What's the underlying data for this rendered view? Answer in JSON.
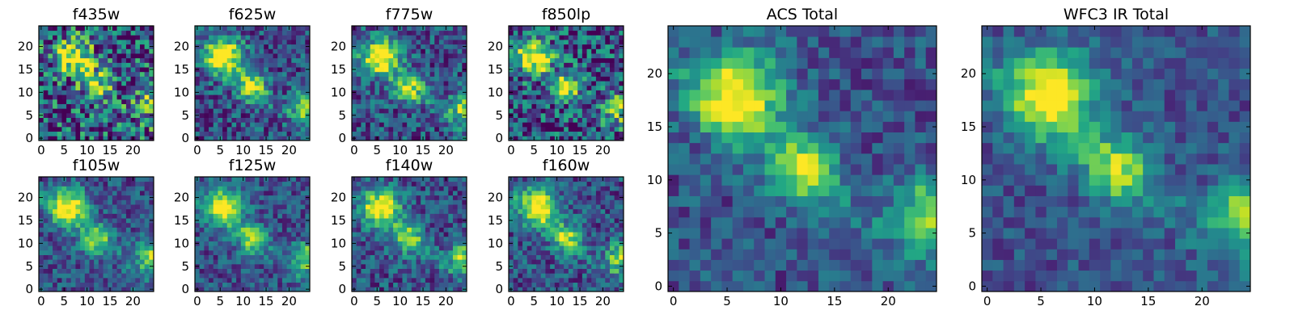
{
  "chart_data": [
    {
      "type": "heatmap",
      "title": "f435w",
      "xticks": [
        0,
        5,
        10,
        15,
        20
      ],
      "yticks": [
        0,
        5,
        10,
        15,
        20
      ],
      "xlim": [
        -0.5,
        24.5
      ],
      "ylim": [
        -0.5,
        24.5
      ],
      "grid": false,
      "colormap": "viridis",
      "shape": [
        25,
        25
      ],
      "peaks": [
        [
          18,
          7
        ],
        [
          12,
          12
        ],
        [
          8,
          24
        ]
      ],
      "noise": 0.9
    },
    {
      "type": "heatmap",
      "title": "f625w",
      "xticks": [
        0,
        5,
        10,
        15,
        20
      ],
      "yticks": [
        0,
        5,
        10,
        15,
        20
      ],
      "xlim": [
        -0.5,
        24.5
      ],
      "ylim": [
        -0.5,
        24.5
      ],
      "grid": false,
      "colormap": "viridis",
      "shape": [
        25,
        25
      ],
      "peaks": [
        [
          18,
          6
        ],
        [
          11,
          12
        ],
        [
          7,
          24
        ]
      ],
      "noise": 0.5
    },
    {
      "type": "heatmap",
      "title": "f775w",
      "xticks": [
        0,
        5,
        10,
        15,
        20
      ],
      "yticks": [
        0,
        5,
        10,
        15,
        20
      ],
      "xlim": [
        -0.5,
        24.5
      ],
      "ylim": [
        -0.5,
        24.5
      ],
      "grid": false,
      "colormap": "viridis",
      "shape": [
        25,
        25
      ],
      "peaks": [
        [
          18,
          6
        ],
        [
          11,
          12
        ],
        [
          7,
          24
        ]
      ],
      "noise": 0.5
    },
    {
      "type": "heatmap",
      "title": "f850lp",
      "xticks": [
        0,
        5,
        10,
        15,
        20
      ],
      "yticks": [
        0,
        5,
        10,
        15,
        20
      ],
      "xlim": [
        -0.5,
        24.5
      ],
      "ylim": [
        -0.5,
        24.5
      ],
      "grid": false,
      "colormap": "viridis",
      "shape": [
        25,
        25
      ],
      "peaks": [
        [
          18,
          5
        ],
        [
          11,
          12
        ],
        [
          7,
          24
        ]
      ],
      "noise": 0.75
    },
    {
      "type": "heatmap",
      "title": "f105w",
      "xticks": [
        0,
        5,
        10,
        15,
        20
      ],
      "yticks": [
        0,
        5,
        10,
        15,
        20
      ],
      "xlim": [
        -0.5,
        24.5
      ],
      "ylim": [
        -0.5,
        24.5
      ],
      "grid": false,
      "colormap": "viridis",
      "shape": [
        25,
        25
      ],
      "peaks": [
        [
          18,
          6
        ],
        [
          11,
          12
        ],
        [
          7,
          24
        ]
      ],
      "noise": 0.4
    },
    {
      "type": "heatmap",
      "title": "f125w",
      "xticks": [
        0,
        5,
        10,
        15,
        20
      ],
      "yticks": [
        0,
        5,
        10,
        15,
        20
      ],
      "xlim": [
        -0.5,
        24.5
      ],
      "ylim": [
        -0.5,
        24.5
      ],
      "grid": false,
      "colormap": "viridis",
      "shape": [
        25,
        25
      ],
      "peaks": [
        [
          18,
          6
        ],
        [
          11,
          12
        ],
        [
          7,
          24
        ]
      ],
      "noise": 0.4
    },
    {
      "type": "heatmap",
      "title": "f140w",
      "xticks": [
        0,
        5,
        10,
        15,
        20
      ],
      "yticks": [
        0,
        5,
        10,
        15,
        20
      ],
      "xlim": [
        -0.5,
        24.5
      ],
      "ylim": [
        -0.5,
        24.5
      ],
      "grid": false,
      "colormap": "viridis",
      "shape": [
        25,
        25
      ],
      "peaks": [
        [
          18,
          6
        ],
        [
          11,
          12
        ],
        [
          7,
          24
        ]
      ],
      "noise": 0.45
    },
    {
      "type": "heatmap",
      "title": "f160w",
      "xticks": [
        0,
        5,
        10,
        15,
        20
      ],
      "yticks": [
        0,
        5,
        10,
        15,
        20
      ],
      "xlim": [
        -0.5,
        24.5
      ],
      "ylim": [
        -0.5,
        24.5
      ],
      "grid": false,
      "colormap": "viridis",
      "shape": [
        25,
        25
      ],
      "peaks": [
        [
          18,
          6
        ],
        [
          11,
          12
        ],
        [
          7,
          24
        ]
      ],
      "noise": 0.45
    },
    {
      "type": "heatmap",
      "title": "ACS Total",
      "xticks": [
        0,
        5,
        10,
        15,
        20
      ],
      "yticks": [
        0,
        5,
        10,
        15,
        20
      ],
      "xlim": [
        -0.5,
        24.5
      ],
      "ylim": [
        -0.5,
        24.5
      ],
      "grid": false,
      "colormap": "viridis",
      "shape": [
        25,
        25
      ],
      "peaks": [
        [
          18,
          6
        ],
        [
          11,
          12
        ],
        [
          7,
          24
        ]
      ],
      "noise": 0.35
    },
    {
      "type": "heatmap",
      "title": "WFC3 IR Total",
      "xticks": [
        0,
        5,
        10,
        15,
        20
      ],
      "yticks": [
        0,
        5,
        10,
        15,
        20
      ],
      "xlim": [
        -0.5,
        24.5
      ],
      "ylim": [
        -0.5,
        24.5
      ],
      "grid": false,
      "colormap": "viridis",
      "shape": [
        25,
        25
      ],
      "peaks": [
        [
          18,
          6
        ],
        [
          11,
          12
        ],
        [
          7,
          24
        ]
      ],
      "noise": 0.3
    }
  ],
  "colors": {
    "viridis": [
      "#440154",
      "#482475",
      "#414487",
      "#355f8d",
      "#2a788e",
      "#21918c",
      "#22a884",
      "#44bf70",
      "#7ad151",
      "#bddf26",
      "#fde725"
    ],
    "axis": "#000000",
    "background": "#ffffff"
  }
}
